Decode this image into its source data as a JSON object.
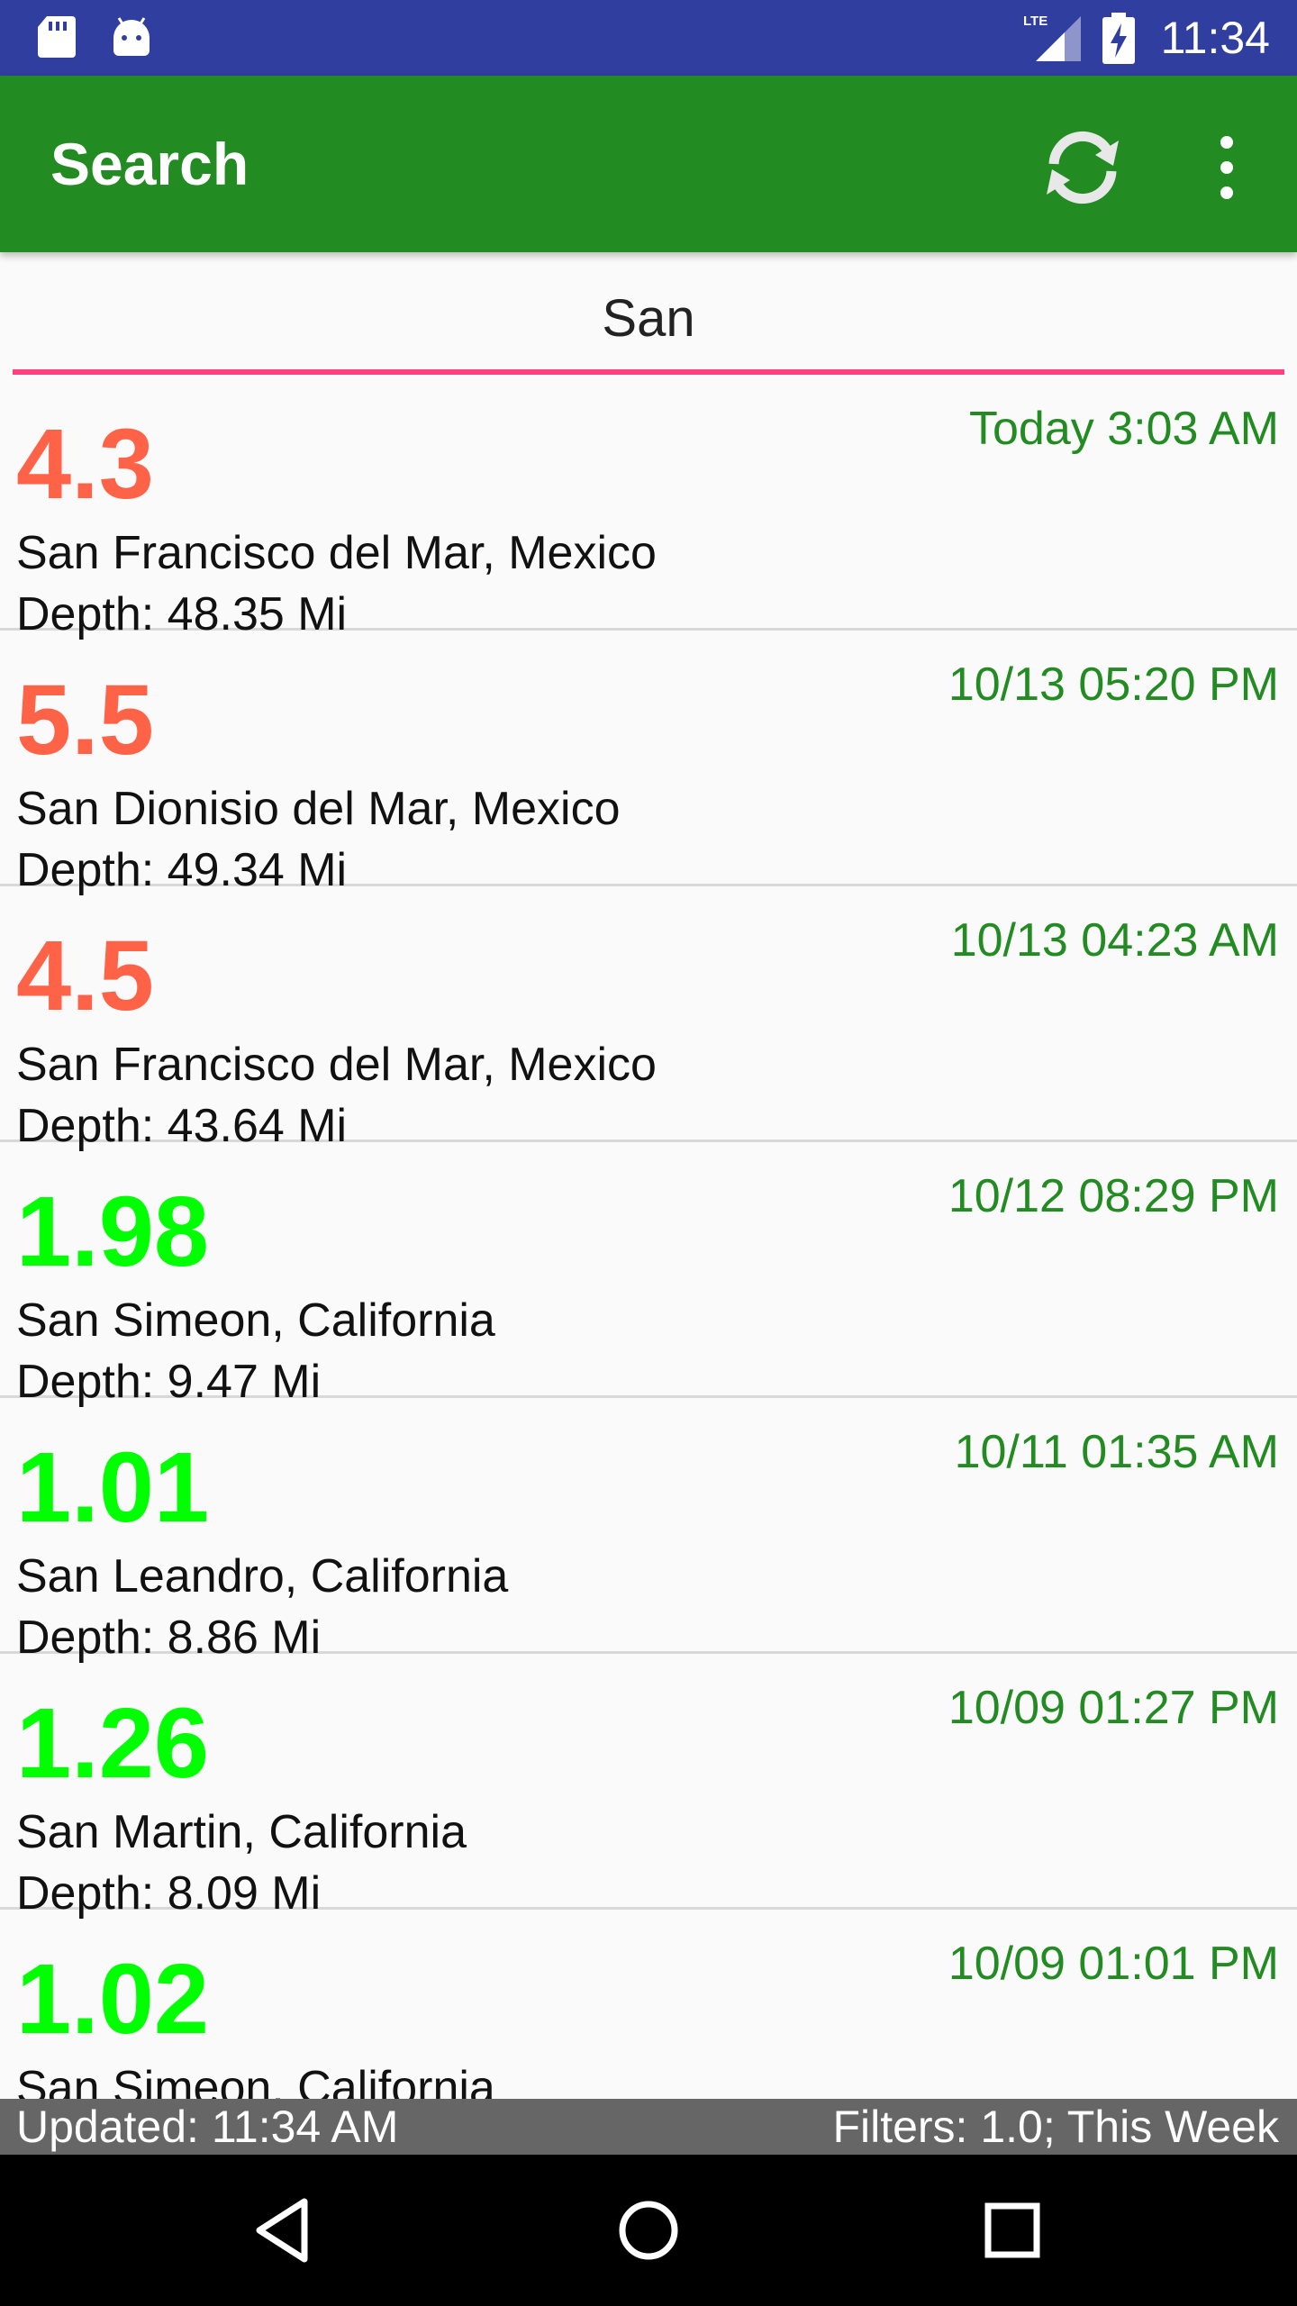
{
  "status_bar": {
    "time": "11:34",
    "icons": [
      "sd-card-icon",
      "android-icon",
      "lte-signal-icon",
      "battery-charging-icon"
    ],
    "color": "#303f9f"
  },
  "app_bar": {
    "title": "Search",
    "color": "#228b22",
    "actions": [
      "refresh-icon",
      "overflow-menu-icon"
    ]
  },
  "search": {
    "value": "San",
    "underline_color": "#ff4081"
  },
  "colors": {
    "magnitude_high": "#ff6347",
    "magnitude_low": "#00ff00",
    "time": "#228b22"
  },
  "earthquakes": [
    {
      "magnitude": "4.3",
      "level": "high",
      "time": "Today 3:03 AM",
      "place": "San Francisco del Mar, Mexico",
      "depth": "Depth: 48.35 Mi"
    },
    {
      "magnitude": "5.5",
      "level": "high",
      "time": "10/13 05:20 PM",
      "place": "San Dionisio del Mar, Mexico",
      "depth": "Depth: 49.34 Mi"
    },
    {
      "magnitude": "4.5",
      "level": "high",
      "time": "10/13 04:23 AM",
      "place": "San Francisco del Mar, Mexico",
      "depth": "Depth: 43.64 Mi"
    },
    {
      "magnitude": "1.98",
      "level": "low",
      "time": "10/12 08:29 PM",
      "place": "San Simeon, California",
      "depth": "Depth: 9.47 Mi"
    },
    {
      "magnitude": "1.01",
      "level": "low",
      "time": "10/11 01:35 AM",
      "place": "San Leandro, California",
      "depth": "Depth: 8.86 Mi"
    },
    {
      "magnitude": "1.26",
      "level": "low",
      "time": "10/09 01:27 PM",
      "place": "San Martin, California",
      "depth": "Depth: 8.09 Mi"
    },
    {
      "magnitude": "1.02",
      "level": "low",
      "time": "10/09 01:01 PM",
      "place": "San Simeon, California",
      "depth": ""
    }
  ],
  "footer": {
    "updated": "Updated: 11:34 AM",
    "filters": "Filters: 1.0; This Week"
  },
  "nav_bar": {
    "buttons": [
      "back-icon",
      "home-icon",
      "recents-icon"
    ]
  }
}
